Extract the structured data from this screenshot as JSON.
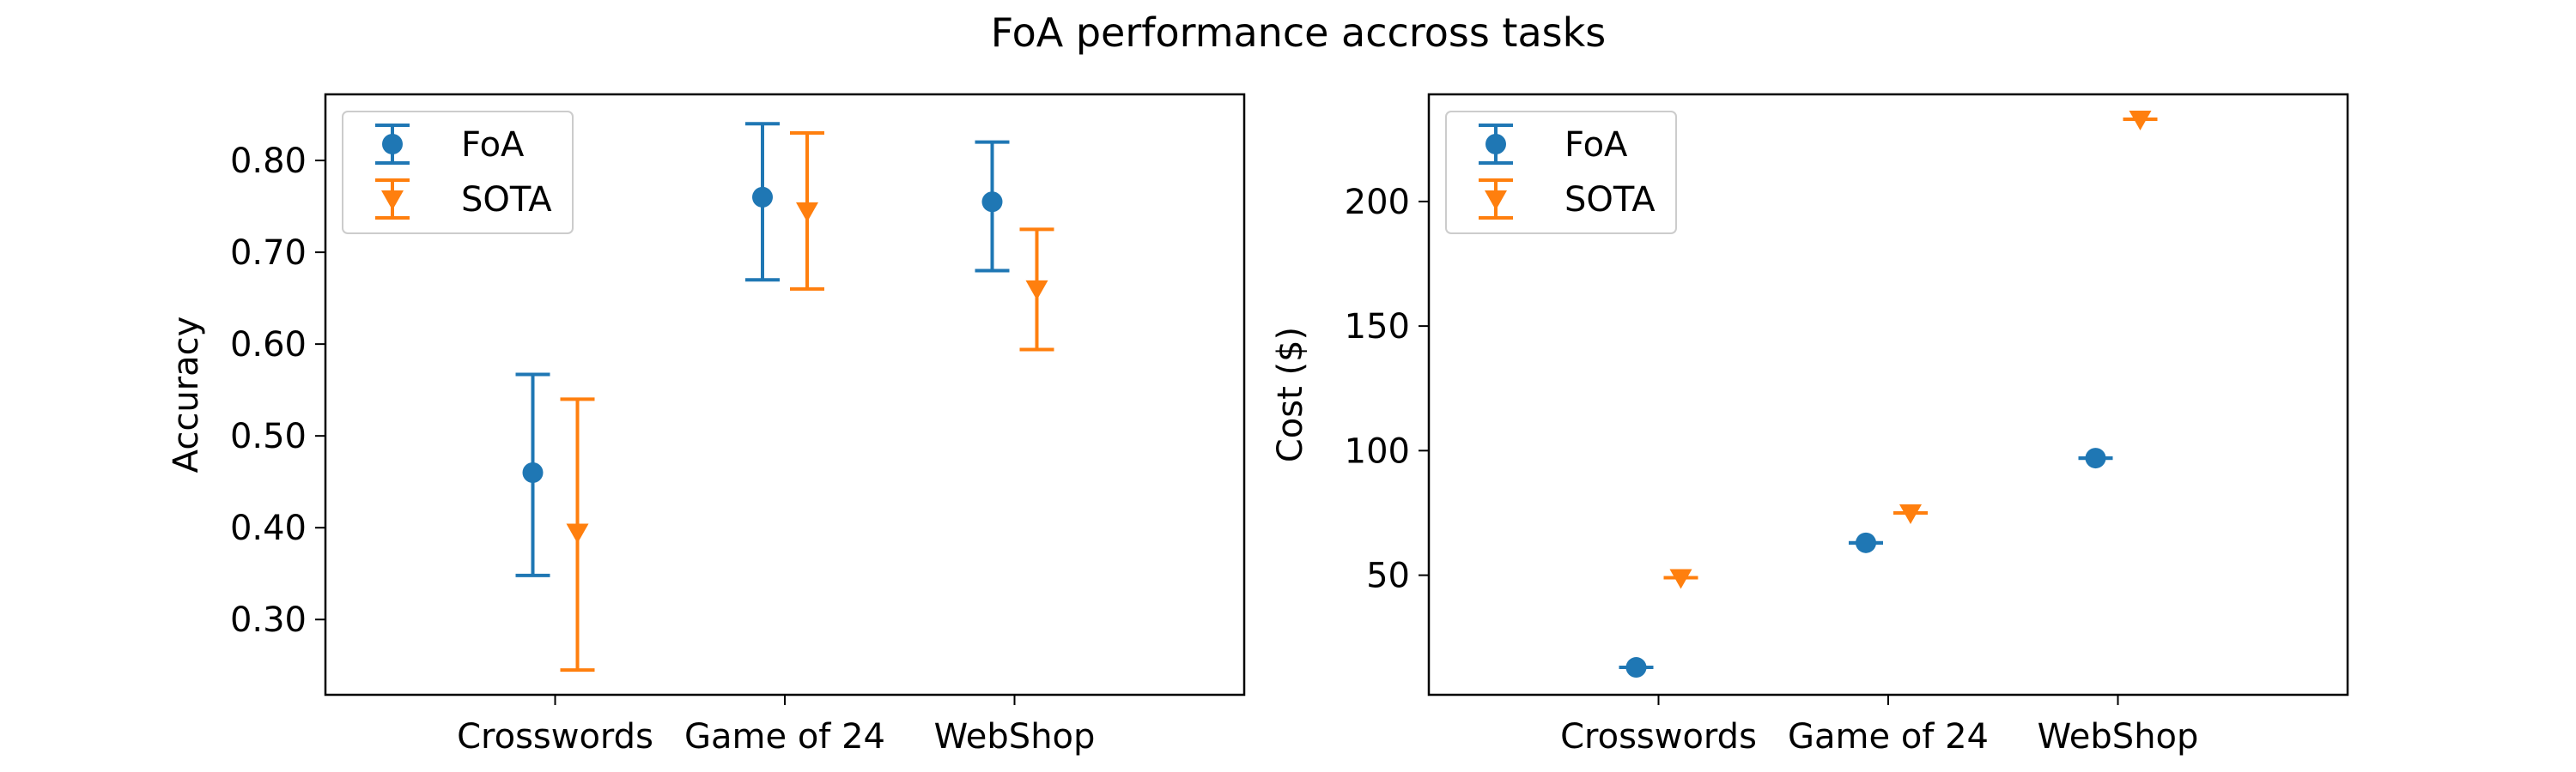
{
  "figure": {
    "title": "FoA performance accross tasks"
  },
  "colors": {
    "FoA": "#1f77b4",
    "SOTA": "#ff7f0e"
  },
  "chart_data": [
    {
      "type": "scatter",
      "title": "",
      "xlabel": "",
      "ylabel": "Accuracy",
      "categories": [
        "Crosswords",
        "Game of 24",
        "WebShop"
      ],
      "yticks": [
        0.3,
        0.4,
        0.5,
        0.6,
        0.7,
        0.8
      ],
      "ytick_labels": [
        "0.30",
        "0.40",
        "0.50",
        "0.60",
        "0.70",
        "0.80"
      ],
      "ylim": [
        0.218,
        0.872
      ],
      "grid": false,
      "legend_position": "top-left",
      "error_bars": true,
      "series": [
        {
          "name": "FoA",
          "marker": "circle",
          "values": [
            0.46,
            0.76,
            0.755
          ],
          "lower": [
            0.348,
            0.67,
            0.68
          ],
          "upper": [
            0.567,
            0.84,
            0.82
          ]
        },
        {
          "name": "SOTA",
          "marker": "triangle-down",
          "values": [
            0.395,
            0.745,
            0.66
          ],
          "lower": [
            0.245,
            0.66,
            0.594
          ],
          "upper": [
            0.54,
            0.83,
            0.725
          ]
        }
      ]
    },
    {
      "type": "scatter",
      "title": "",
      "xlabel": "",
      "ylabel": "Cost ($)",
      "categories": [
        "Crosswords",
        "Game of 24",
        "WebShop"
      ],
      "yticks": [
        50,
        100,
        150,
        200
      ],
      "ytick_labels": [
        "50",
        "100",
        "150",
        "200"
      ],
      "ylim": [
        2,
        243
      ],
      "grid": false,
      "legend_position": "top-left",
      "error_bars": true,
      "series": [
        {
          "name": "FoA",
          "marker": "circle",
          "values": [
            13,
            63,
            97
          ],
          "lower": [
            13,
            63,
            97
          ],
          "upper": [
            13,
            63,
            97
          ]
        },
        {
          "name": "SOTA",
          "marker": "triangle-down",
          "values": [
            49,
            75,
            233
          ],
          "lower": [
            49,
            75,
            233
          ],
          "upper": [
            49,
            75,
            233
          ]
        }
      ]
    }
  ]
}
